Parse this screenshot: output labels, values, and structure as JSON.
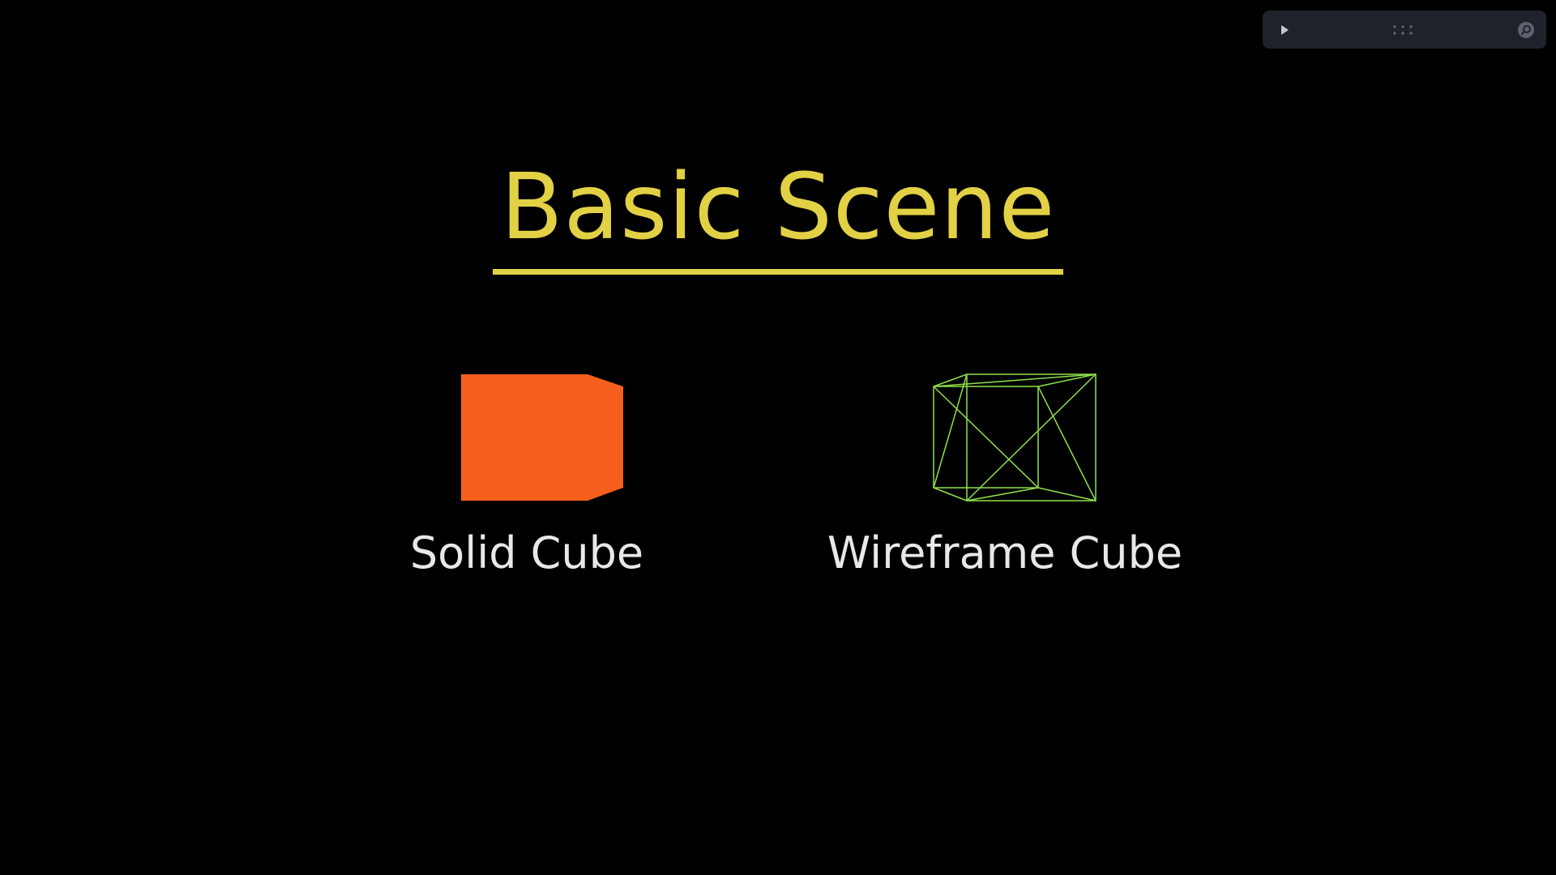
{
  "scene": {
    "title": "Basic Scene",
    "title_color": "#e3d145",
    "underline_color": "#e3d145",
    "background_color": "#000000"
  },
  "objects": [
    {
      "label": "Solid Cube",
      "style": "solid",
      "fill_color": "#f75f1c"
    },
    {
      "label": "Wireframe Cube",
      "style": "wireframe",
      "stroke_color": "#8fe04a"
    }
  ],
  "toolbar": {
    "background_color": "#1f222b",
    "icons": [
      "play-icon",
      "drag-handle-icon",
      "search-zoom-icon"
    ]
  }
}
